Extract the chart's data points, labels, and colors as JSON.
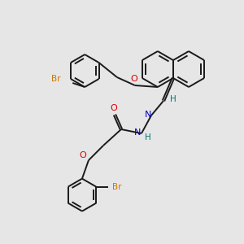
{
  "background_color": "#e6e6e6",
  "bond_color": "#1a1a1a",
  "atom_colors": {
    "Br": "#cc7700",
    "O": "#dd0000",
    "N": "#0000cc",
    "H": "#007777",
    "C": "#1a1a1a"
  },
  "figsize": [
    3.0,
    3.0
  ],
  "dpi": 100,
  "lw": 1.4,
  "ring_r": 22
}
